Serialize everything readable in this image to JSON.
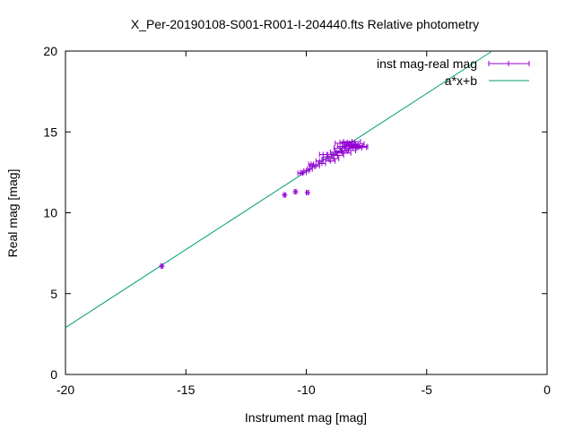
{
  "chart_data": {
    "type": "scatter",
    "title": "X_Per-20190108-S001-R001-I-204440.fts Relative photometry",
    "xlabel": "Instrument mag [mag]",
    "ylabel": "Real mag [mag]",
    "xlim": [
      -20,
      0
    ],
    "ylim": [
      0,
      20
    ],
    "x_ticks": [
      "-20",
      "-15",
      "-10",
      "-5",
      "0"
    ],
    "y_ticks": [
      "0",
      "5",
      "10",
      "15",
      "20"
    ],
    "grid": false,
    "legend_position": "top-right",
    "series": [
      {
        "name": "inst mag-real mag",
        "kind": "points_with_xerror",
        "color": "#9400d3",
        "points": [
          {
            "x": -16.0,
            "y": 6.7,
            "xerr": 0.05
          },
          {
            "x": -10.9,
            "y": 11.1,
            "xerr": 0.05
          },
          {
            "x": -10.45,
            "y": 11.3,
            "xerr": 0.05
          },
          {
            "x": -9.95,
            "y": 11.25,
            "xerr": 0.05
          },
          {
            "x": -10.25,
            "y": 12.45,
            "xerr": 0.1
          },
          {
            "x": -10.1,
            "y": 12.5,
            "xerr": 0.1
          },
          {
            "x": -10.0,
            "y": 12.6,
            "xerr": 0.1
          },
          {
            "x": -9.85,
            "y": 12.7,
            "xerr": 0.1
          },
          {
            "x": -9.8,
            "y": 13.0,
            "xerr": 0.1
          },
          {
            "x": -9.75,
            "y": 12.85,
            "xerr": 0.1
          },
          {
            "x": -9.6,
            "y": 12.9,
            "xerr": 0.15
          },
          {
            "x": -9.45,
            "y": 13.2,
            "xerr": 0.15
          },
          {
            "x": -9.35,
            "y": 13.05,
            "xerr": 0.15
          },
          {
            "x": -9.3,
            "y": 13.6,
            "xerr": 0.15
          },
          {
            "x": -9.2,
            "y": 13.3,
            "xerr": 0.15
          },
          {
            "x": -9.1,
            "y": 13.45,
            "xerr": 0.2
          },
          {
            "x": -9.0,
            "y": 13.2,
            "xerr": 0.2
          },
          {
            "x": -8.9,
            "y": 13.6,
            "xerr": 0.2
          },
          {
            "x": -8.85,
            "y": 13.35,
            "xerr": 0.2
          },
          {
            "x": -8.75,
            "y": 13.75,
            "xerr": 0.25
          },
          {
            "x": -8.7,
            "y": 13.55,
            "xerr": 0.25
          },
          {
            "x": -8.6,
            "y": 14.0,
            "xerr": 0.25
          },
          {
            "x": -8.55,
            "y": 13.8,
            "xerr": 0.25
          },
          {
            "x": -8.5,
            "y": 14.3,
            "xerr": 0.3
          },
          {
            "x": -8.45,
            "y": 13.7,
            "xerr": 0.3
          },
          {
            "x": -8.4,
            "y": 14.1,
            "xerr": 0.3
          },
          {
            "x": -8.3,
            "y": 14.35,
            "xerr": 0.3
          },
          {
            "x": -8.25,
            "y": 13.85,
            "xerr": 0.3
          },
          {
            "x": -8.2,
            "y": 14.0,
            "xerr": 0.3
          },
          {
            "x": -8.15,
            "y": 14.2,
            "xerr": 0.3
          },
          {
            "x": -8.1,
            "y": 14.4,
            "xerr": 0.35
          },
          {
            "x": -8.05,
            "y": 14.0,
            "xerr": 0.35
          },
          {
            "x": -8.0,
            "y": 14.15,
            "xerr": 0.35
          },
          {
            "x": -7.95,
            "y": 14.25,
            "xerr": 0.35
          },
          {
            "x": -7.85,
            "y": 14.05,
            "xerr": 0.35
          },
          {
            "x": -7.8,
            "y": 14.1,
            "xerr": 0.35
          }
        ]
      },
      {
        "name": "a*x+b",
        "kind": "line",
        "color": "#009e73",
        "x": [
          -20,
          -2.28
        ],
        "y": [
          2.9,
          20
        ]
      }
    ]
  }
}
